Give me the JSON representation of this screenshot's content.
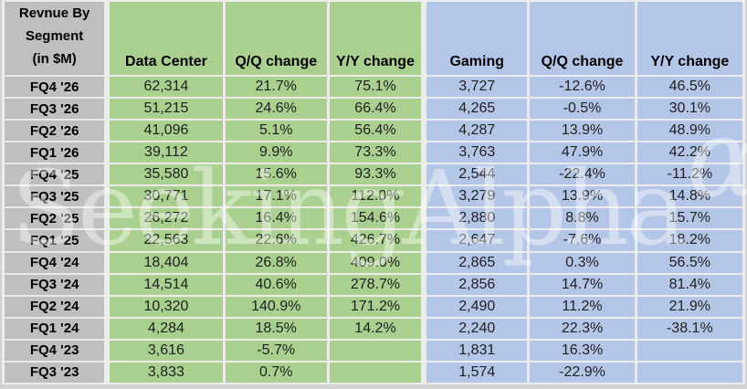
{
  "chart_data": {
    "type": "table",
    "title": "Revnue By Segment (in $M)",
    "corner_title_lines": [
      "Revnue By",
      "Segment",
      "(in $M)"
    ],
    "columns": [
      "Data Center",
      "Q/Q change",
      "Y/Y change",
      "Gaming",
      "Q/Q change",
      "Y/Y change"
    ],
    "rows": [
      {
        "label": "FQ4 '26",
        "values": [
          "62,314",
          "21.7%",
          "75.1%",
          "3,727",
          "-12.6%",
          "46.5%"
        ]
      },
      {
        "label": "FQ3 '26",
        "values": [
          "51,215",
          "24.6%",
          "66.4%",
          "4,265",
          "-0.5%",
          "30.1%"
        ]
      },
      {
        "label": "FQ2 '26",
        "values": [
          "41,096",
          "5.1%",
          "56.4%",
          "4,287",
          "13.9%",
          "48.9%"
        ]
      },
      {
        "label": "FQ1 '26",
        "values": [
          "39,112",
          "9.9%",
          "73.3%",
          "3,763",
          "47.9%",
          "42.2%"
        ]
      },
      {
        "label": "FQ4 '25",
        "values": [
          "35,580",
          "15.6%",
          "93.3%",
          "2,544",
          "-22.4%",
          "-11.2%"
        ]
      },
      {
        "label": "FQ3 '25",
        "values": [
          "30,771",
          "17.1%",
          "112.0%",
          "3,279",
          "13.9%",
          "14.8%"
        ]
      },
      {
        "label": "FQ2 '25",
        "values": [
          "26,272",
          "16.4%",
          "154.6%",
          "2,880",
          "8.8%",
          "15.7%"
        ]
      },
      {
        "label": "FQ1 '25",
        "values": [
          "22,563",
          "22.6%",
          "426.7%",
          "2,647",
          "-7.6%",
          "18.2%"
        ]
      },
      {
        "label": "FQ4 '24",
        "values": [
          "18,404",
          "26.8%",
          "409.0%",
          "2,865",
          "0.3%",
          "56.5%"
        ]
      },
      {
        "label": "FQ3 '24",
        "values": [
          "14,514",
          "40.6%",
          "278.7%",
          "2,856",
          "14.7%",
          "81.4%"
        ]
      },
      {
        "label": "FQ2 '24",
        "values": [
          "10,320",
          "140.9%",
          "171.2%",
          "2,490",
          "11.2%",
          "21.9%"
        ]
      },
      {
        "label": "FQ1 '24",
        "values": [
          "4,284",
          "18.5%",
          "14.2%",
          "2,240",
          "22.3%",
          "-38.1%"
        ]
      },
      {
        "label": "FQ4 '23",
        "values": [
          "3,616",
          "-5.7%",
          "",
          "1,831",
          "16.3%",
          ""
        ]
      },
      {
        "label": "FQ3 '23",
        "values": [
          "3,833",
          "0.7%",
          "",
          "1,574",
          "-22.9%",
          ""
        ]
      }
    ]
  },
  "watermark": {
    "text": "SeekingAlpha",
    "alpha": "α"
  },
  "colors": {
    "segment_green": "#A9D08E",
    "segment_blue": "#B4C6E7",
    "label_gray": "#BFBFBF",
    "gridline": "#ECECEC",
    "page_background": "#D2D2D2"
  }
}
